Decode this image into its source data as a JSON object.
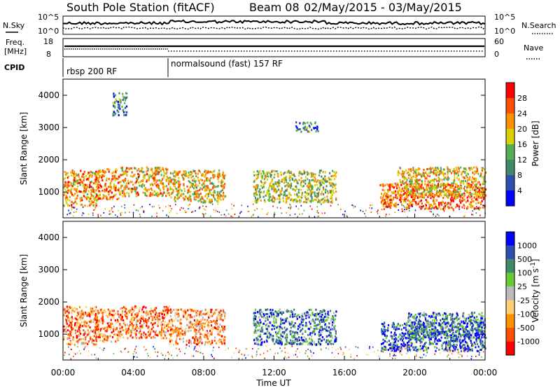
{
  "header": {
    "station": "South Pole Station (fitACF)",
    "beam": "Beam 08",
    "date_range": "02/May/2015 - 03/May/2015"
  },
  "top_panels": {
    "nsky_label": "N.Sky",
    "nsearch_label": "N.Search",
    "noise_ticks": [
      "10^5",
      "10^0"
    ],
    "freq_label_1": "Freq.",
    "freq_label_2": "[MHz]",
    "freq_ticks": [
      "18",
      "8"
    ],
    "nave_label": "Nave",
    "nave_ticks": [
      "60",
      "0"
    ],
    "cpid_label": "CPID",
    "cpid_segments": [
      "rbsp 200 RF",
      "normalsound (fast) 157 RF"
    ]
  },
  "colors": {
    "power_scale": [
      "#0000ff",
      "#2f4fb0",
      "#3f8a6a",
      "#55b055",
      "#d8d000",
      "#ff9000",
      "#ff5000",
      "#ff0000"
    ],
    "velocity_scale": [
      "#ff0000",
      "#ff5000",
      "#ff9000",
      "#ffd070",
      "#bbbbbb",
      "#66cc33",
      "#3f8a6a",
      "#2f4fb0",
      "#0000ff"
    ]
  },
  "chart_data": [
    {
      "type": "heatmap",
      "title": "",
      "xlabel": "",
      "ylabel": "Slant Range [km]",
      "xlim": [
        "00:00",
        "24:00"
      ],
      "ylim": [
        200,
        4500
      ],
      "yticks": [
        "1000",
        "2000",
        "3000",
        "4000"
      ],
      "colorbar_label": "Power [dB]",
      "colorbar_ticks": [
        "4",
        "8",
        "12",
        "16",
        "20",
        "24",
        "28"
      ],
      "colorbar_range": [
        0,
        32
      ],
      "blobs": [
        {
          "t0": 0.0,
          "t1": 2.0,
          "r0": 600,
          "r1": 1700,
          "level": 0.7
        },
        {
          "t0": 1.8,
          "t1": 3.2,
          "r0": 800,
          "r1": 1750,
          "level": 0.75
        },
        {
          "t0": 3.2,
          "t1": 6.0,
          "r0": 900,
          "r1": 1800,
          "level": 0.65
        },
        {
          "t0": 6.0,
          "t1": 9.2,
          "r0": 700,
          "r1": 1700,
          "level": 0.6
        },
        {
          "t0": 10.8,
          "t1": 15.5,
          "r0": 700,
          "r1": 1700,
          "level": 0.5
        },
        {
          "t0": 18.0,
          "t1": 24.0,
          "r0": 500,
          "r1": 1300,
          "level": 0.8
        },
        {
          "t0": 19.0,
          "t1": 24.0,
          "r0": 900,
          "r1": 1800,
          "level": 0.6
        },
        {
          "t0": 2.8,
          "t1": 3.6,
          "r0": 3400,
          "r1": 4100,
          "level": 0.3
        },
        {
          "t0": 13.2,
          "t1": 14.5,
          "r0": 2900,
          "r1": 3200,
          "level": 0.3
        }
      ]
    },
    {
      "type": "heatmap",
      "title": "",
      "xlabel": "Time UT",
      "ylabel": "Slant Range [km]",
      "xlim": [
        "00:00",
        "24:00"
      ],
      "ylim": [
        200,
        4500
      ],
      "xticks": [
        "00:00",
        "04:00",
        "08:00",
        "12:00",
        "16:00",
        "20:00",
        "00:00"
      ],
      "yticks": [
        "1000",
        "2000",
        "3000",
        "4000"
      ],
      "colorbar_label": "Velocity [m s-1]",
      "colorbar_label_text": "Velocity [m s",
      "colorbar_label_sup": "-1",
      "colorbar_label_end": "]",
      "colorbar_ticks": [
        "-1000",
        "-500",
        "-100",
        "-25",
        "25",
        "100",
        "500",
        "1000"
      ],
      "blobs": [
        {
          "t0": 0.0,
          "t1": 2.0,
          "r0": 700,
          "r1": 1900,
          "level": 0.25
        },
        {
          "t0": 1.8,
          "t1": 3.2,
          "r0": 800,
          "r1": 1800,
          "level": 0.2
        },
        {
          "t0": 3.2,
          "t1": 6.0,
          "r0": 900,
          "r1": 1900,
          "level": 0.25
        },
        {
          "t0": 6.0,
          "t1": 9.2,
          "r0": 700,
          "r1": 1800,
          "level": 0.3
        },
        {
          "t0": 10.8,
          "t1": 15.5,
          "r0": 700,
          "r1": 1800,
          "level": 0.75
        },
        {
          "t0": 18.0,
          "t1": 24.0,
          "r0": 500,
          "r1": 1400,
          "level": 0.85
        },
        {
          "t0": 19.5,
          "t1": 24.0,
          "r0": 900,
          "r1": 1700,
          "level": 0.75
        }
      ]
    }
  ]
}
